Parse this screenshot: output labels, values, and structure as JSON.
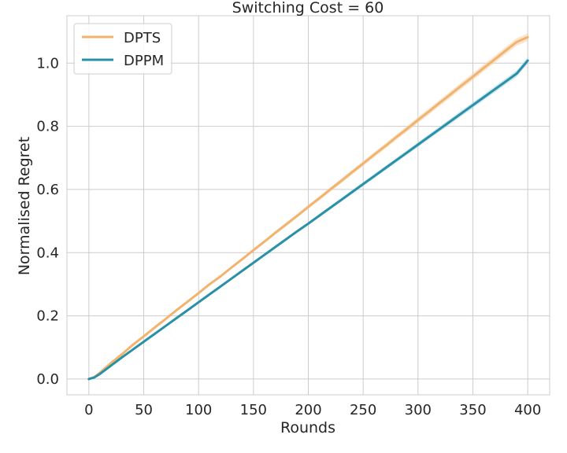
{
  "chart_data": {
    "type": "line",
    "title": "Switching Cost = 60",
    "xlabel": "Rounds",
    "ylabel": "Normalised Regret",
    "xlim": [
      -20,
      420
    ],
    "ylim": [
      -0.05,
      1.15
    ],
    "xticks": [
      0,
      50,
      100,
      150,
      200,
      250,
      300,
      350,
      400
    ],
    "xtick_labels": [
      "0",
      "50",
      "100",
      "150",
      "200",
      "250",
      "300",
      "350",
      "400"
    ],
    "yticks": [
      0.0,
      0.2,
      0.4,
      0.6,
      0.8,
      1.0
    ],
    "ytick_labels": [
      "0.0",
      "0.2",
      "0.4",
      "0.6",
      "0.8",
      "1.0"
    ],
    "grid": true,
    "legend_position": "top-left",
    "x": [
      0,
      5,
      10,
      20,
      30,
      40,
      50,
      60,
      70,
      80,
      90,
      100,
      110,
      120,
      130,
      140,
      150,
      160,
      170,
      180,
      190,
      200,
      210,
      220,
      230,
      240,
      250,
      260,
      270,
      280,
      290,
      300,
      310,
      320,
      330,
      340,
      350,
      360,
      370,
      380,
      390,
      400
    ],
    "series": [
      {
        "name": "DPTS",
        "color": "#f2b36e",
        "band_color": "#f6cfa6",
        "values": [
          0.0,
          0.006,
          0.02,
          0.05,
          0.078,
          0.108,
          0.135,
          0.163,
          0.19,
          0.218,
          0.245,
          0.272,
          0.3,
          0.325,
          0.353,
          0.38,
          0.408,
          0.435,
          0.463,
          0.49,
          0.517,
          0.545,
          0.572,
          0.6,
          0.627,
          0.655,
          0.682,
          0.71,
          0.737,
          0.765,
          0.792,
          0.82,
          0.847,
          0.875,
          0.902,
          0.93,
          0.957,
          0.985,
          1.012,
          1.04,
          1.067,
          1.082
        ],
        "band": 0.012
      },
      {
        "name": "DPPM",
        "color": "#2a90a8",
        "band_color": "#9fd4e3",
        "values": [
          0.0,
          0.005,
          0.016,
          0.042,
          0.068,
          0.093,
          0.118,
          0.143,
          0.168,
          0.193,
          0.218,
          0.243,
          0.268,
          0.293,
          0.318,
          0.343,
          0.368,
          0.393,
          0.418,
          0.443,
          0.468,
          0.492,
          0.517,
          0.542,
          0.567,
          0.592,
          0.617,
          0.642,
          0.667,
          0.692,
          0.717,
          0.742,
          0.767,
          0.792,
          0.817,
          0.842,
          0.867,
          0.892,
          0.917,
          0.942,
          0.967,
          1.008
        ],
        "band": 0.01
      }
    ]
  }
}
